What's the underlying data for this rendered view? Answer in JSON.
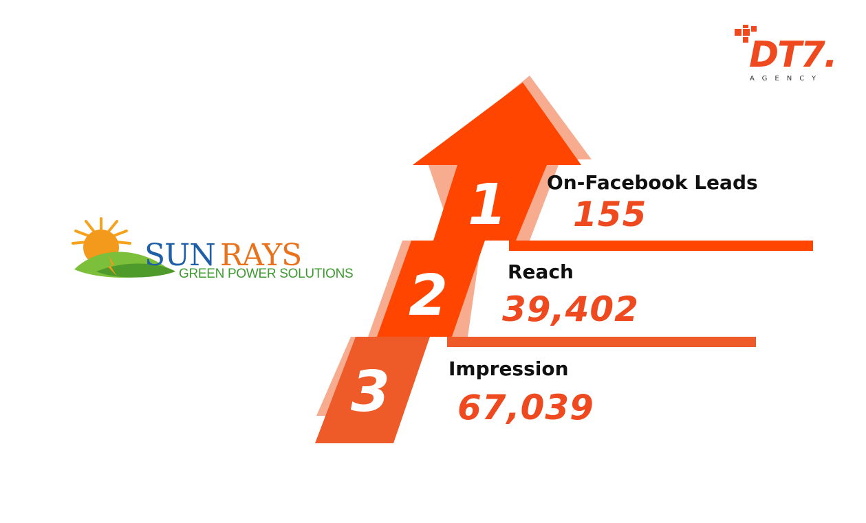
{
  "brand": {
    "name_part1": "SUN",
    "name_part2": "RAYS",
    "tagline": "GREEN POWER SOLUTIONS",
    "colors": {
      "blue": "#1f5fa8",
      "orange": "#e8731c",
      "green": "#3c9a2e"
    }
  },
  "agency": {
    "name": "DT7.",
    "subtitle": "AGENCY",
    "color": "#ef4a1f"
  },
  "steps": [
    {
      "number": "1",
      "label": "On-Facebook Leads",
      "value": "155"
    },
    {
      "number": "2",
      "label": "Reach",
      "value": "39,402"
    },
    {
      "number": "3",
      "label": "Impression",
      "value": "67,039"
    }
  ],
  "accent_colors": {
    "arrow": "#ff4500",
    "shadow": "#f7a98a",
    "step3": "#ee5a28"
  }
}
